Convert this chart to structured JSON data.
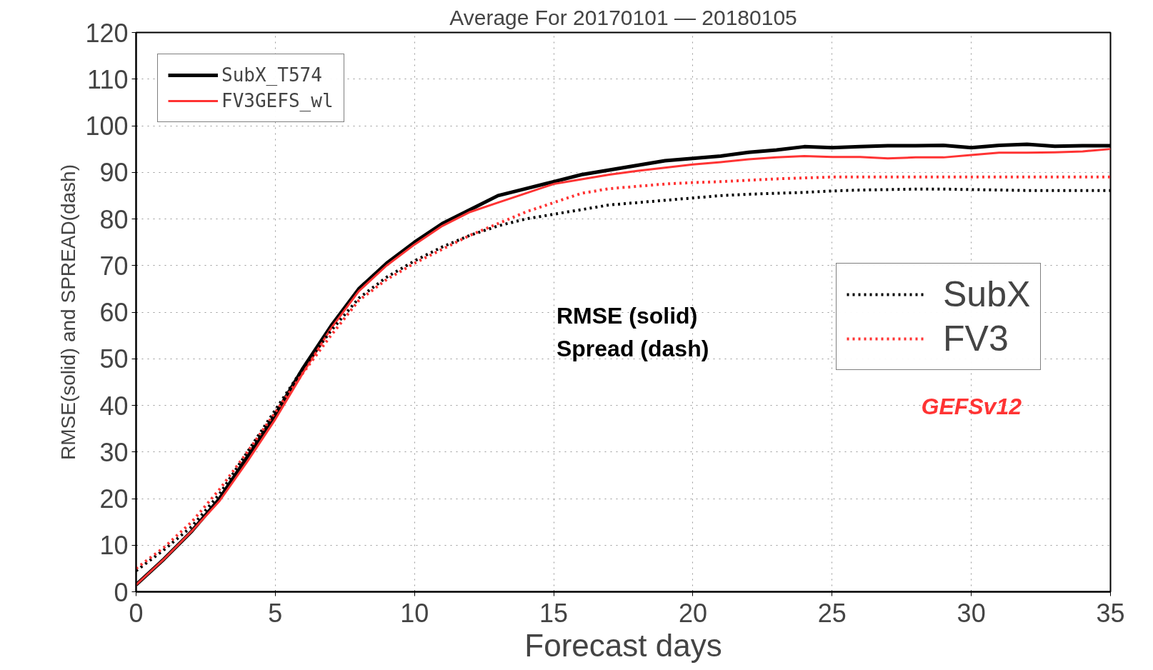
{
  "chart_data": {
    "type": "line",
    "title": "Average For 20170101 — 20180105",
    "xlabel": "Forecast days",
    "ylabel": "RMSE(solid) and SPREAD(dash)",
    "x": [
      0,
      1,
      2,
      3,
      4,
      5,
      6,
      7,
      8,
      9,
      10,
      11,
      12,
      13,
      14,
      15,
      16,
      17,
      18,
      19,
      20,
      21,
      22,
      23,
      24,
      25,
      26,
      27,
      28,
      29,
      30,
      31,
      32,
      33,
      34,
      35
    ],
    "series": [
      {
        "name": "SubX_T574",
        "color": "#000000",
        "line_style": "solid",
        "values": [
          1.5,
          7,
          13,
          20,
          29,
          38,
          48,
          57,
          65,
          70.5,
          75,
          79,
          82,
          85,
          86.5,
          88,
          89.5,
          90.5,
          91.5,
          92.5,
          93,
          93.5,
          94.3,
          94.8,
          95.5,
          95.3,
          95.5,
          95.7,
          95.7,
          95.8,
          95.3,
          95.8,
          96,
          95.6,
          95.7,
          95.7
        ]
      },
      {
        "name": "FV3GEFS_wl",
        "color": "#ff3333",
        "line_style": "solid",
        "values": [
          1.5,
          7,
          13,
          19.5,
          28,
          37,
          47,
          56.5,
          64.5,
          70,
          74.5,
          78.5,
          81.5,
          83.5,
          85.5,
          87.5,
          88.5,
          89.5,
          90.3,
          91,
          91.7,
          92.2,
          92.8,
          93.2,
          93.5,
          93.3,
          93.3,
          93,
          93.2,
          93.2,
          93.7,
          94.2,
          94.2,
          94.3,
          94.5,
          95
        ]
      },
      {
        "name": "SubX",
        "color": "#000000",
        "line_style": "dotted",
        "values": [
          4.5,
          9,
          14,
          21,
          30,
          39,
          48,
          56,
          63,
          67.5,
          71,
          74,
          76.5,
          78.5,
          80,
          81,
          82,
          83,
          83.5,
          84,
          84.5,
          85,
          85.3,
          85.5,
          85.7,
          86,
          86.2,
          86.3,
          86.4,
          86.4,
          86.3,
          86.2,
          86.1,
          86.1,
          86.1,
          86.1
        ]
      },
      {
        "name": "FV3",
        "color": "#ff3333",
        "line_style": "dotted",
        "values": [
          5,
          9.5,
          15,
          22,
          30,
          38.5,
          47,
          55,
          62.5,
          67,
          70.5,
          73.5,
          76.5,
          79,
          81.5,
          83.5,
          85.5,
          86.5,
          87,
          87.5,
          87.8,
          88,
          88.3,
          88.6,
          88.8,
          89,
          89,
          89,
          89,
          89,
          89,
          89,
          89,
          89,
          89,
          89
        ]
      }
    ],
    "xlim": [
      0,
      35
    ],
    "xticks": [
      0,
      5,
      10,
      15,
      20,
      25,
      30,
      35
    ],
    "ylim": [
      0,
      120
    ],
    "yticks": [
      0,
      10,
      20,
      30,
      40,
      50,
      60,
      70,
      80,
      90,
      100,
      110,
      120
    ],
    "grid": true,
    "legend": "top left",
    "annotations": [
      "RMSE (solid)",
      "Spread (dash)",
      "GEFSv12"
    ]
  }
}
